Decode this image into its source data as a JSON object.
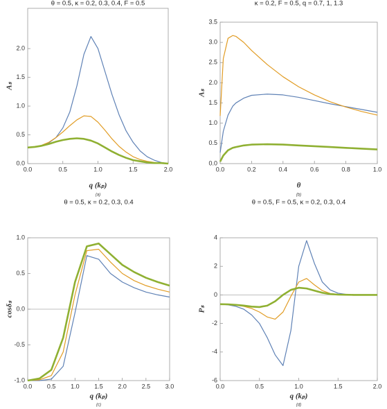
{
  "chart_data": [
    {
      "type": "line",
      "title": "θ = 0.5, κ = 0.2, 0.3, 0.4, F = 0.5",
      "x_label": "q (kₚ)",
      "y_label": "Aₛ",
      "caption": "(a)",
      "x": [
        0,
        0.1,
        0.2,
        0.3,
        0.4,
        0.5,
        0.6,
        0.7,
        0.8,
        0.9,
        1.0,
        1.1,
        1.2,
        1.3,
        1.4,
        1.5,
        1.6,
        1.7,
        1.8,
        1.9,
        2.0
      ],
      "series": [
        {
          "color": "#5e81b5",
          "values": [
            0.28,
            0.29,
            0.31,
            0.36,
            0.45,
            0.62,
            0.9,
            1.35,
            1.9,
            2.21,
            2.0,
            1.6,
            1.2,
            0.85,
            0.57,
            0.37,
            0.22,
            0.12,
            0.06,
            0.02,
            0
          ]
        },
        {
          "color": "#e19c24",
          "values": [
            0.28,
            0.29,
            0.32,
            0.37,
            0.45,
            0.55,
            0.66,
            0.76,
            0.83,
            0.82,
            0.72,
            0.58,
            0.43,
            0.3,
            0.2,
            0.12,
            0.07,
            0.04,
            0.02,
            0.01,
            0
          ]
        },
        {
          "color": "#8fb032",
          "values": [
            0.28,
            0.29,
            0.31,
            0.34,
            0.38,
            0.41,
            0.43,
            0.44,
            0.43,
            0.4,
            0.35,
            0.28,
            0.21,
            0.15,
            0.1,
            0.06,
            0.04,
            0.02,
            0.01,
            0.01,
            0
          ]
        }
      ],
      "xlim": [
        0,
        2.0
      ],
      "xticks": [
        {
          "value": 0,
          "label": "0.0"
        },
        0.5,
        {
          "value": 1,
          "label": "1.0"
        },
        1.5,
        {
          "value": 2,
          "label": "2.0"
        }
      ],
      "ylim": [
        0,
        2.7
      ],
      "yticks": [
        {
          "value": 0,
          "label": "0.0"
        },
        0.5,
        {
          "value": 1,
          "label": "1.0"
        },
        1.5,
        {
          "value": 2,
          "label": "2.0"
        }
      ]
    },
    {
      "type": "line",
      "title": "κ = 0.2, F = 0.5, q = 0.7, 1, 1.3",
      "x_label": "θ",
      "y_label": "Aₛ",
      "caption": "(b)",
      "x": [
        0,
        0.02,
        0.05,
        0.08,
        0.1,
        0.15,
        0.2,
        0.3,
        0.4,
        0.5,
        0.6,
        0.7,
        0.8,
        0.9,
        1.0
      ],
      "series": [
        {
          "color": "#5e81b5",
          "values": [
            0.27,
            0.8,
            1.2,
            1.42,
            1.5,
            1.62,
            1.69,
            1.72,
            1.7,
            1.64,
            1.56,
            1.48,
            1.41,
            1.34,
            1.27
          ]
        },
        {
          "color": "#e19c24",
          "values": [
            1.18,
            2.6,
            3.1,
            3.17,
            3.15,
            3.0,
            2.8,
            2.45,
            2.15,
            1.9,
            1.7,
            1.53,
            1.4,
            1.29,
            1.2
          ]
        },
        {
          "color": "#8fb032",
          "values": [
            0.05,
            0.2,
            0.33,
            0.39,
            0.41,
            0.45,
            0.47,
            0.48,
            0.47,
            0.45,
            0.43,
            0.41,
            0.39,
            0.37,
            0.35
          ]
        }
      ],
      "xlim": [
        0,
        1.0
      ],
      "xticks": [
        {
          "value": 0,
          "label": "0.0"
        },
        0.2,
        0.4,
        0.6,
        0.8,
        {
          "value": 1,
          "label": "1.0"
        }
      ],
      "ylim": [
        0,
        3.5
      ],
      "yticks": [
        {
          "value": 0,
          "label": "0.0"
        },
        0.5,
        {
          "value": 1,
          "label": "1.0"
        },
        1.5,
        {
          "value": 2,
          "label": "2.0"
        },
        2.5,
        {
          "value": 3,
          "label": "3.0"
        },
        3.5
      ]
    },
    {
      "type": "line",
      "title": "θ = 0.5, κ = 0.2, 0.3, 0.4",
      "x_label": "q (kₚ)",
      "y_label": "cosδₛ",
      "caption": "(c)",
      "x": [
        0,
        0.25,
        0.5,
        0.75,
        1.0,
        1.25,
        1.5,
        1.75,
        2.0,
        2.25,
        2.5,
        2.75,
        3.0
      ],
      "series": [
        {
          "color": "#5e81b5",
          "values": [
            -1,
            -1,
            -0.98,
            -0.8,
            -0.05,
            0.75,
            0.7,
            0.5,
            0.38,
            0.3,
            0.24,
            0.2,
            0.17
          ]
        },
        {
          "color": "#e19c24",
          "values": [
            -1,
            -0.99,
            -0.93,
            -0.6,
            0.2,
            0.82,
            0.84,
            0.66,
            0.5,
            0.4,
            0.33,
            0.28,
            0.24
          ]
        },
        {
          "color": "#8fb032",
          "values": [
            -1,
            -0.97,
            -0.85,
            -0.4,
            0.38,
            0.88,
            0.92,
            0.77,
            0.62,
            0.52,
            0.44,
            0.38,
            0.33
          ]
        }
      ],
      "xlim": [
        0,
        3.0
      ],
      "xticks": [
        {
          "value": 0,
          "label": "0.0"
        },
        0.5,
        {
          "value": 1,
          "label": "1.0"
        },
        1.5,
        {
          "value": 2,
          "label": "2.0"
        },
        2.5,
        {
          "value": 3,
          "label": "3.0"
        }
      ],
      "ylim": [
        -1,
        1
      ],
      "yticks": [
        {
          "value": -1,
          "label": "-1.0"
        },
        -0.5,
        {
          "value": 0,
          "label": "0.0"
        },
        0.5,
        {
          "value": 1,
          "label": "1.0"
        }
      ]
    },
    {
      "type": "line",
      "title": "θ = 0.5, F = 0.5, κ = 0.2, 0.3, 0.4",
      "x_label": "q (kₚ)",
      "y_label": "Pₛ",
      "caption": "(d)",
      "x": [
        0,
        0.1,
        0.2,
        0.3,
        0.4,
        0.5,
        0.6,
        0.7,
        0.8,
        0.9,
        1.0,
        1.1,
        1.2,
        1.3,
        1.4,
        1.5,
        1.6,
        1.7,
        1.8,
        1.9,
        2.0
      ],
      "series": [
        {
          "color": "#5e81b5",
          "values": [
            -0.65,
            -0.7,
            -0.8,
            -1.0,
            -1.4,
            -2.0,
            -3.0,
            -4.2,
            -4.95,
            -2.5,
            2.0,
            3.8,
            2.2,
            0.9,
            0.35,
            0.12,
            0.04,
            0.01,
            0,
            0,
            0
          ]
        },
        {
          "color": "#e19c24",
          "values": [
            -0.65,
            -0.68,
            -0.72,
            -0.8,
            -0.95,
            -1.2,
            -1.55,
            -1.7,
            -1.2,
            -0.1,
            0.9,
            1.15,
            0.7,
            0.3,
            0.1,
            0.04,
            0.01,
            0,
            0,
            0,
            0
          ]
        },
        {
          "color": "#8fb032",
          "values": [
            -0.65,
            -0.66,
            -0.7,
            -0.75,
            -0.82,
            -0.85,
            -0.75,
            -0.45,
            0,
            0.35,
            0.5,
            0.45,
            0.3,
            0.15,
            0.06,
            0.02,
            0.01,
            0,
            0,
            0,
            0
          ]
        }
      ],
      "xlim": [
        0,
        2.0
      ],
      "xticks": [
        {
          "value": 0,
          "label": "0.0"
        },
        0.5,
        {
          "value": 1,
          "label": "1.0"
        },
        1.5,
        {
          "value": 2,
          "label": "2.0"
        }
      ],
      "ylim": [
        -6,
        4
      ],
      "yticks": [
        -6,
        -4,
        -2,
        0,
        2,
        4
      ]
    }
  ]
}
